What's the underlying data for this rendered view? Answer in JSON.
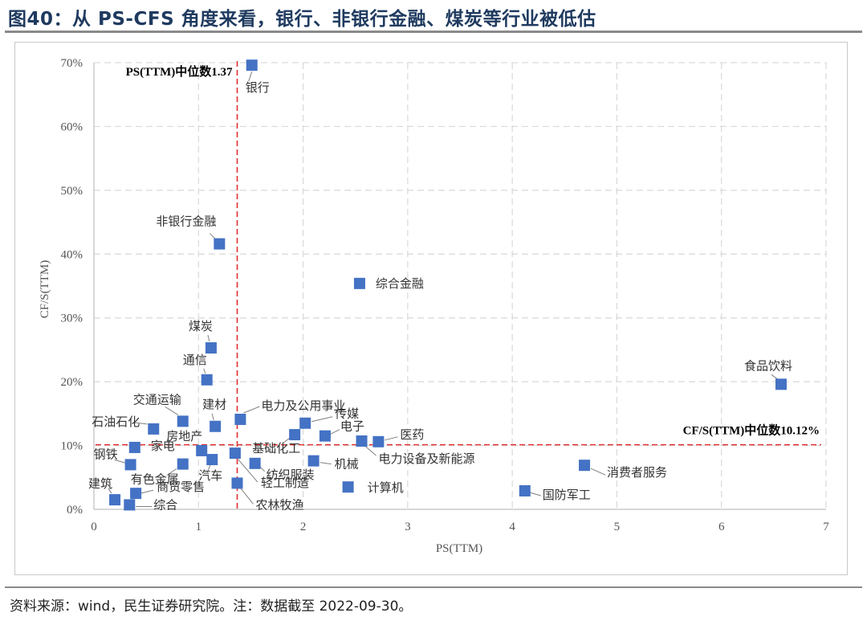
{
  "figure": {
    "title": "图40：从 PS-CFS 角度来看，银行、非银行金融、煤炭等行业被低估",
    "source": "资料来源：wind，民生证券研究院。注：数据截至 2022-09-30。"
  },
  "chart_data": {
    "type": "scatter",
    "xlabel": "PS(TTM)",
    "ylabel": "CF/S(TTM)",
    "xlim": [
      0,
      7
    ],
    "ylim": [
      0,
      70
    ],
    "x_ticks": [
      "0",
      "1",
      "2",
      "3",
      "4",
      "5",
      "6",
      "7"
    ],
    "y_ticks": [
      "0%",
      "10%",
      "20%",
      "30%",
      "40%",
      "50%",
      "60%",
      "70%"
    ],
    "grid": true,
    "marker_color": "#4472C4",
    "median_color": "#E03030",
    "median_x": {
      "value": 1.37,
      "label": "PS(TTM)中位数1.37"
    },
    "median_y": {
      "value": 10.12,
      "label": "CF/S(TTM)中位数10.12%"
    },
    "points": [
      {
        "name": "银行",
        "x": 1.51,
        "y": 69.6
      },
      {
        "name": "非银行金融",
        "x": 1.2,
        "y": 41.6
      },
      {
        "name": "综合金融",
        "x": 2.54,
        "y": 35.4
      },
      {
        "name": "煤炭",
        "x": 1.12,
        "y": 25.3
      },
      {
        "name": "通信",
        "x": 1.08,
        "y": 20.3
      },
      {
        "name": "食品饮料",
        "x": 6.57,
        "y": 19.6
      },
      {
        "name": "交通运输",
        "x": 0.85,
        "y": 13.8
      },
      {
        "name": "建材",
        "x": 1.16,
        "y": 13.0
      },
      {
        "name": "电力及公用事业",
        "x": 1.4,
        "y": 14.1
      },
      {
        "name": "石油石化",
        "x": 0.57,
        "y": 12.6
      },
      {
        "name": "传媒",
        "x": 2.02,
        "y": 13.5
      },
      {
        "name": "电子",
        "x": 2.21,
        "y": 11.5
      },
      {
        "name": "基础化工",
        "x": 1.92,
        "y": 11.7
      },
      {
        "name": "医药",
        "x": 2.72,
        "y": 10.6
      },
      {
        "name": "电力设备及新能源",
        "x": 2.56,
        "y": 10.7
      },
      {
        "name": "房地产",
        "x": 1.03,
        "y": 9.2
      },
      {
        "name": "家电",
        "x": 0.39,
        "y": 9.7
      },
      {
        "name": "钢铁",
        "x": 0.35,
        "y": 7.0
      },
      {
        "name": "有色金属",
        "x": 0.85,
        "y": 7.1
      },
      {
        "name": "汽车",
        "x": 1.13,
        "y": 7.8
      },
      {
        "name": "纺织服装",
        "x": 1.54,
        "y": 7.2
      },
      {
        "name": "机械",
        "x": 2.1,
        "y": 7.6
      },
      {
        "name": "轻工制造",
        "x": 1.35,
        "y": 8.8
      },
      {
        "name": "消费者服务",
        "x": 4.69,
        "y": 6.9
      },
      {
        "name": "计算机",
        "x": 2.43,
        "y": 3.5
      },
      {
        "name": "国防军工",
        "x": 4.12,
        "y": 2.9
      },
      {
        "name": "商贸零售",
        "x": 0.4,
        "y": 2.5
      },
      {
        "name": "建筑",
        "x": 0.2,
        "y": 1.5
      },
      {
        "name": "农林牧渔",
        "x": 1.37,
        "y": 4.1
      },
      {
        "name": "综合",
        "x": 0.34,
        "y": 0.7
      }
    ]
  }
}
